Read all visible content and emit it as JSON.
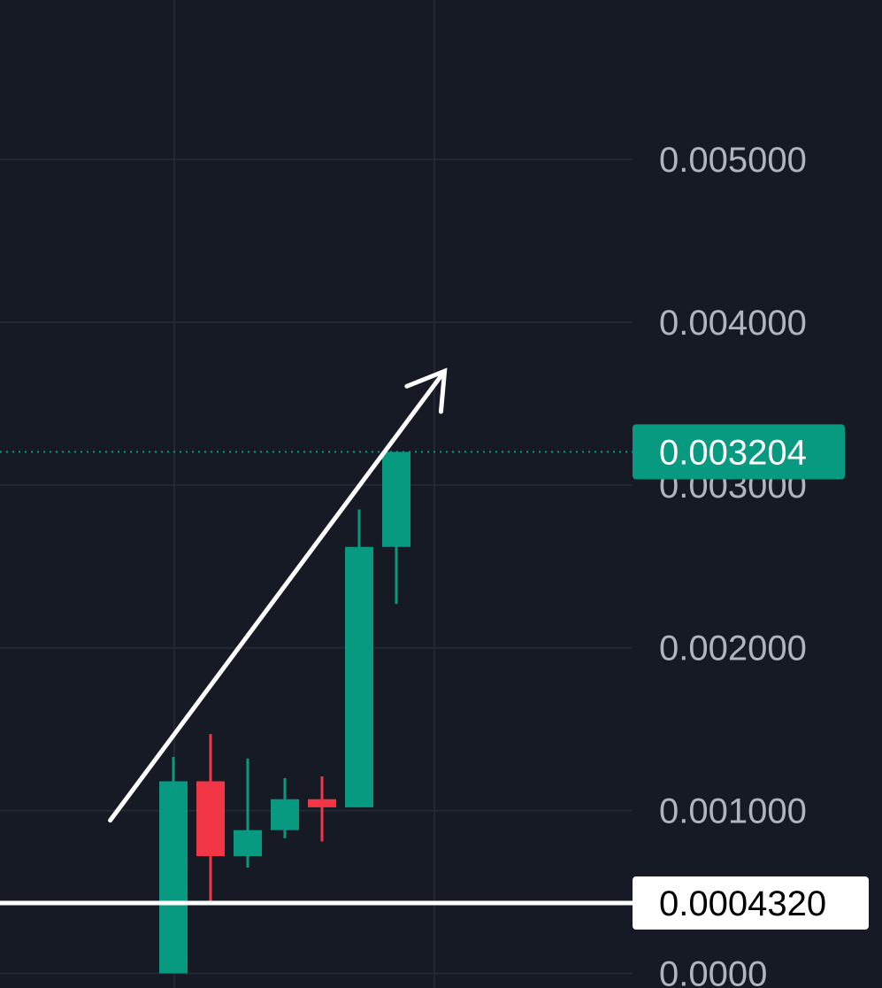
{
  "chart_data": {
    "type": "candlestick",
    "y_axis": {
      "range": [
        -9e-05,
        0.00598
      ],
      "ticks": [
        {
          "value": 0.005,
          "label": "0.005000"
        },
        {
          "value": 0.004,
          "label": "0.004000"
        },
        {
          "value": 0.003,
          "label": "0.003000"
        },
        {
          "value": 0.002,
          "label": "0.002000"
        },
        {
          "value": 0.001,
          "label": "0.001000"
        },
        {
          "value": 0.0,
          "label": "0.0000"
        }
      ]
    },
    "grid": true,
    "candles": [
      {
        "open": 0.0,
        "high": 0.00133,
        "low": 0.0,
        "close": 0.00118
      },
      {
        "open": 0.00118,
        "high": 0.00147,
        "low": 0.00044,
        "close": 0.00072
      },
      {
        "open": 0.00072,
        "high": 0.00132,
        "low": 0.00065,
        "close": 0.00088
      },
      {
        "open": 0.00088,
        "high": 0.0012,
        "low": 0.00083,
        "close": 0.00107
      },
      {
        "open": 0.00107,
        "high": 0.00121,
        "low": 0.00081,
        "close": 0.00102
      },
      {
        "open": 0.00102,
        "high": 0.00285,
        "low": 0.00102,
        "close": 0.00262
      },
      {
        "open": 0.00262,
        "high": 0.0032,
        "low": 0.00227,
        "close": 0.003204
      }
    ],
    "current_price": {
      "value": 0.003204,
      "label": "0.003204"
    },
    "horizontal_level": {
      "value": 0.000432,
      "label": "0.0004320"
    },
    "arrow_annotation": {
      "from": {
        "candle_index": -1.7,
        "value": 0.00094
      },
      "to": {
        "candle_index": 7.3,
        "value": 0.0037
      }
    }
  },
  "colors": {
    "background": "#161a25",
    "grid": "#242834",
    "up": "#089981",
    "down": "#f23645",
    "axis_text": "#b2b5be",
    "level_line": "#ffffff",
    "current_price_badge": "#089981"
  }
}
